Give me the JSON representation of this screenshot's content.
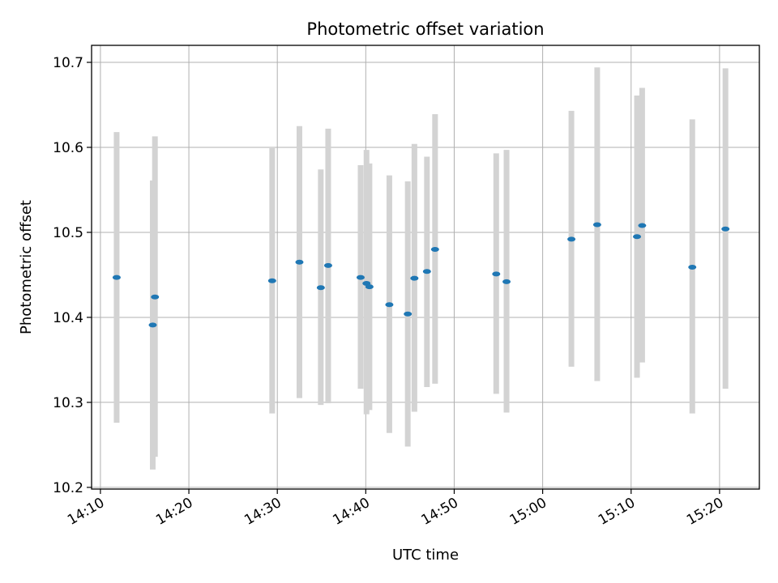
{
  "chart_data": {
    "type": "scatter",
    "title": "Photometric offset variation",
    "xlabel": "UTC time",
    "ylabel": "Photometric offset",
    "xlim": [
      "14:09:00",
      "15:24:30"
    ],
    "ylim": [
      10.198,
      10.72
    ],
    "x_ticks": [
      "14:10",
      "14:20",
      "14:30",
      "14:40",
      "14:50",
      "15:00",
      "15:10",
      "15:20"
    ],
    "y_ticks": [
      "10.2",
      "10.3",
      "10.4",
      "10.5",
      "10.6",
      "10.7"
    ],
    "grid": true,
    "colors": {
      "point": "#1f77b4",
      "errorbar": "#d3d3d3",
      "grid": "#b0b0b0"
    },
    "points": [
      {
        "x": "14:11:50",
        "y": 10.447,
        "ylow": 10.276,
        "yhigh": 10.618
      },
      {
        "x": "14:15:55",
        "y": 10.391,
        "ylow": 10.221,
        "yhigh": 10.561
      },
      {
        "x": "14:16:10",
        "y": 10.424,
        "ylow": 10.236,
        "yhigh": 10.613
      },
      {
        "x": "14:29:25",
        "y": 10.443,
        "ylow": 10.287,
        "yhigh": 10.599
      },
      {
        "x": "14:32:30",
        "y": 10.465,
        "ylow": 10.305,
        "yhigh": 10.625
      },
      {
        "x": "14:34:55",
        "y": 10.435,
        "ylow": 10.297,
        "yhigh": 10.574
      },
      {
        "x": "14:35:45",
        "y": 10.461,
        "ylow": 10.299,
        "yhigh": 10.622
      },
      {
        "x": "14:39:25",
        "y": 10.447,
        "ylow": 10.316,
        "yhigh": 10.579
      },
      {
        "x": "14:40:05",
        "y": 10.44,
        "ylow": 10.286,
        "yhigh": 10.597
      },
      {
        "x": "14:40:25",
        "y": 10.436,
        "ylow": 10.291,
        "yhigh": 10.581
      },
      {
        "x": "14:42:40",
        "y": 10.415,
        "ylow": 10.264,
        "yhigh": 10.567
      },
      {
        "x": "14:44:45",
        "y": 10.404,
        "ylow": 10.248,
        "yhigh": 10.56
      },
      {
        "x": "14:45:30",
        "y": 10.446,
        "ylow": 10.289,
        "yhigh": 10.604
      },
      {
        "x": "14:46:55",
        "y": 10.454,
        "ylow": 10.318,
        "yhigh": 10.589
      },
      {
        "x": "14:47:50",
        "y": 10.48,
        "ylow": 10.322,
        "yhigh": 10.639
      },
      {
        "x": "14:54:45",
        "y": 10.451,
        "ylow": 10.31,
        "yhigh": 10.593
      },
      {
        "x": "14:55:55",
        "y": 10.442,
        "ylow": 10.288,
        "yhigh": 10.597
      },
      {
        "x": "15:03:15",
        "y": 10.492,
        "ylow": 10.342,
        "yhigh": 10.643
      },
      {
        "x": "15:06:10",
        "y": 10.509,
        "ylow": 10.325,
        "yhigh": 10.694
      },
      {
        "x": "15:10:40",
        "y": 10.495,
        "ylow": 10.329,
        "yhigh": 10.661
      },
      {
        "x": "15:11:15",
        "y": 10.508,
        "ylow": 10.347,
        "yhigh": 10.67
      },
      {
        "x": "15:16:55",
        "y": 10.459,
        "ylow": 10.287,
        "yhigh": 10.633
      },
      {
        "x": "15:20:40",
        "y": 10.504,
        "ylow": 10.316,
        "yhigh": 10.693
      }
    ]
  }
}
